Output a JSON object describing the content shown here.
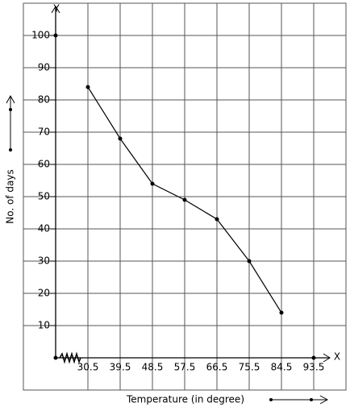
{
  "chart_data": {
    "type": "line",
    "y_axis_name": "Y",
    "x_axis_name": "X",
    "ylabel": "No. of days",
    "xlabel": "Temperature (in degree)",
    "series": [
      {
        "color": "#000000",
        "x": [
          30.5,
          39.5,
          48.5,
          57.5,
          66.5,
          75.5,
          84.5
        ],
        "values": [
          84,
          68,
          54,
          49,
          43,
          30,
          14
        ]
      }
    ],
    "xlim": [
      21.5,
      102.5
    ],
    "xticks": [
      30.5,
      39.5,
      48.5,
      57.5,
      66.5,
      75.5,
      84.5,
      93.5
    ],
    "ylim": [
      -10,
      110
    ],
    "yticks": [
      10,
      20,
      30,
      40,
      50,
      60,
      70,
      80,
      90,
      100
    ],
    "grid": true
  }
}
